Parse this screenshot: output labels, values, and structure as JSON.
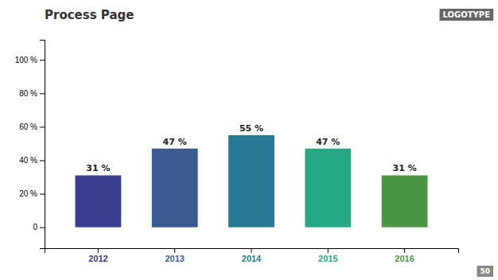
{
  "chart_data": {
    "type": "bar",
    "title": "Process Page",
    "annotations": [
      "LOGOTYPE",
      "50"
    ],
    "categories": [
      "2012",
      "2013",
      "2014",
      "2015",
      "2016"
    ],
    "values": [
      31,
      47,
      55,
      47,
      31
    ],
    "colors": [
      "#3a4090",
      "#3a5a90",
      "#267a96",
      "#26a882",
      "#4a9645"
    ],
    "data_labels": true,
    "value_labels": [
      "31 %",
      "47 %",
      "55 %",
      "47 %",
      "31 %"
    ],
    "ylim": [
      -12.5,
      112
    ],
    "yticks": [
      0,
      {
        "value": 20,
        "label": "20 %"
      },
      {
        "value": 40,
        "label": "40 %"
      },
      {
        "value": 60,
        "label": "60 %"
      },
      {
        "value": 80,
        "label": "80 %"
      },
      {
        "value": 100,
        "label": "100 %"
      }
    ],
    "grid": false
  }
}
